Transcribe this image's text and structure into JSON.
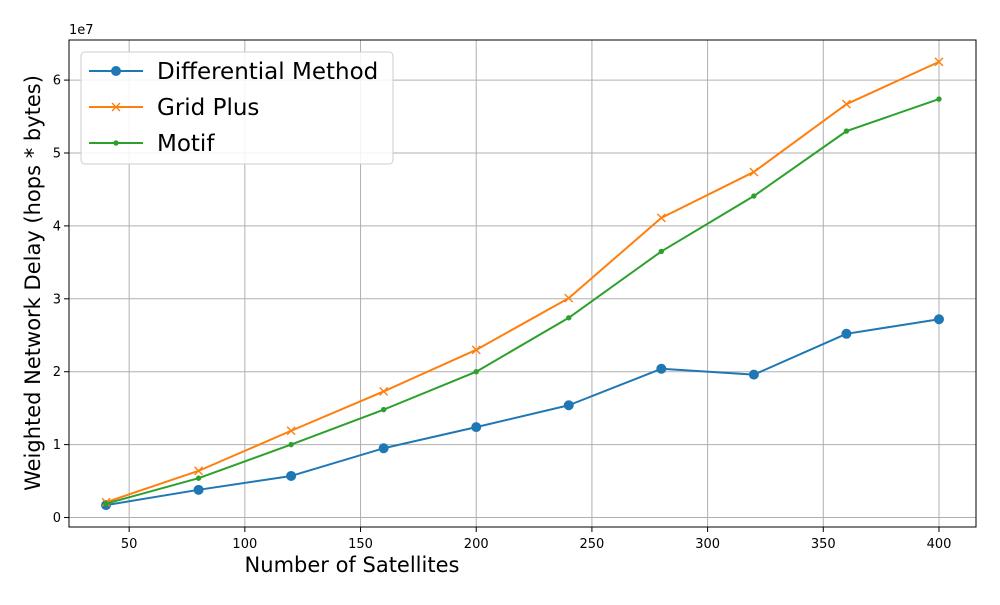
{
  "chart_data": {
    "type": "line",
    "xlabel": "Number of Satellites",
    "ylabel": "Weighted Network Delay (hops * bytes)",
    "y_offset_label": "1e7",
    "x": [
      40,
      80,
      120,
      160,
      200,
      240,
      280,
      320,
      360,
      400
    ],
    "xlim": [
      24,
      416
    ],
    "ylim": [
      -1300000,
      65500000
    ],
    "x_ticks": [
      50,
      100,
      150,
      200,
      250,
      300,
      350,
      400
    ],
    "y_ticks": [
      0,
      10000000,
      20000000,
      30000000,
      40000000,
      50000000,
      60000000
    ],
    "y_tick_labels": [
      "0",
      "1",
      "2",
      "3",
      "4",
      "5",
      "6"
    ],
    "grid": true,
    "legend_position": "top-left",
    "series": [
      {
        "name": "Differential Method",
        "color": "#1f77b4",
        "marker": "circle",
        "values": [
          1700000,
          3800000,
          5700000,
          9500000,
          12400000,
          15400000,
          20400000,
          19600000,
          25200000,
          27200000
        ]
      },
      {
        "name": "Grid Plus",
        "color": "#ff7f0e",
        "marker": "x",
        "values": [
          2100000,
          6400000,
          11900000,
          17300000,
          23000000,
          30100000,
          41100000,
          47400000,
          56700000,
          62500000
        ]
      },
      {
        "name": "Motif",
        "color": "#2ca02c",
        "marker": "point",
        "values": [
          1900000,
          5400000,
          10000000,
          14800000,
          20000000,
          27400000,
          36500000,
          44100000,
          53000000,
          57400000
        ]
      }
    ]
  }
}
